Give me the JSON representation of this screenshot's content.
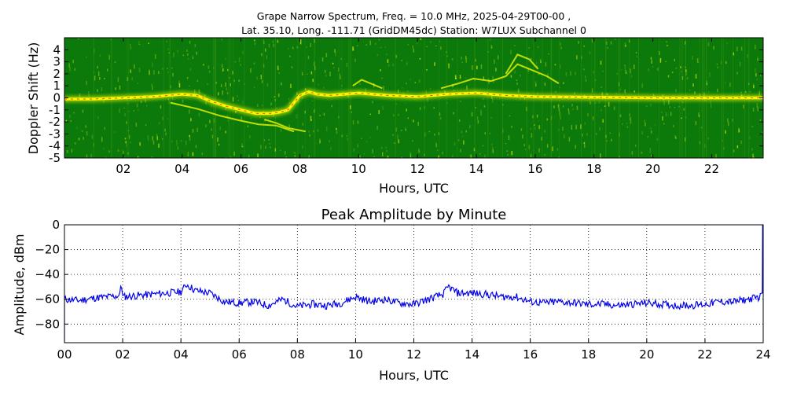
{
  "chart_data": [
    {
      "type": "heatmap",
      "title_line1": "Grape Narrow Spectrum, Freq. = 10.0 MHz, 2025-04-29T00-00 ,",
      "title_line2": "Lat.  35.10, Long. -111.71 (GridDM45dc) Station: W7LUX Subchannel 0",
      "xlabel": "Hours, UTC",
      "ylabel": "Doppler Shift (Hz)",
      "xlim": [
        0,
        23.75
      ],
      "ylim": [
        -5,
        5
      ],
      "x_ticks": [
        "02",
        "04",
        "06",
        "08",
        "10",
        "12",
        "14",
        "16",
        "18",
        "20",
        "22"
      ],
      "y_ticks": [
        "-5",
        "-4",
        "-3",
        "-2",
        "-1",
        "0",
        "1",
        "2",
        "3",
        "4"
      ],
      "colors": {
        "background": "#0b7a0b",
        "mid": "#8fc41a",
        "high": "#ffff00",
        "peak": "#ff2000"
      },
      "doppler_trace": {
        "hours": [
          0,
          1,
          2,
          3,
          4,
          4.5,
          5,
          5.5,
          6,
          6.5,
          7,
          7.3,
          7.6,
          8,
          8.3,
          8.6,
          9,
          9.5,
          10,
          10.5,
          11,
          12,
          13,
          14,
          15,
          16,
          18,
          20,
          22,
          23.75
        ],
        "hz": [
          -0.1,
          -0.1,
          0,
          0.1,
          0.3,
          0.2,
          -0.3,
          -0.7,
          -1.0,
          -1.3,
          -1.3,
          -1.2,
          -1.0,
          0.2,
          0.5,
          0.3,
          0.2,
          0.3,
          0.4,
          0.3,
          0.2,
          0.1,
          0.3,
          0.4,
          0.2,
          0.1,
          0.05,
          0,
          0,
          0
        ]
      },
      "secondary_traces": [
        {
          "hours": [
            3.6,
            4.5,
            5.3,
            6.0,
            6.6,
            7.2,
            7.8
          ],
          "hz": [
            -0.4,
            -0.9,
            -1.5,
            -1.9,
            -2.2,
            -2.3,
            -2.8
          ]
        },
        {
          "hours": [
            6.8,
            7.2,
            7.6,
            8.2
          ],
          "hz": [
            -1.8,
            -2.1,
            -2.5,
            -2.8
          ]
        },
        {
          "hours": [
            12.8,
            13.4,
            13.9,
            14.5,
            15.0,
            15.4,
            15.9,
            16.4,
            16.8
          ],
          "hz": [
            0.8,
            1.2,
            1.6,
            1.4,
            1.8,
            2.8,
            2.3,
            1.8,
            1.2
          ]
        },
        {
          "hours": [
            15.0,
            15.4,
            15.8,
            16.1
          ],
          "hz": [
            2.0,
            3.6,
            3.2,
            2.4
          ]
        },
        {
          "hours": [
            9.8,
            10.1,
            10.4,
            10.8
          ],
          "hz": [
            1.0,
            1.5,
            1.2,
            0.8
          ]
        }
      ]
    },
    {
      "type": "line",
      "title": "Peak Amplitude by Minute",
      "xlabel": "Hours, UTC",
      "ylabel": "Amplitude, dBm",
      "xlim": [
        0,
        24
      ],
      "ylim": [
        -95,
        0
      ],
      "x_ticks": [
        "00",
        "02",
        "04",
        "06",
        "08",
        "10",
        "12",
        "14",
        "16",
        "18",
        "20",
        "22",
        "24"
      ],
      "y_ticks": [
        "0",
        "−20",
        "−40",
        "−60",
        "−80"
      ],
      "y_tick_values": [
        0,
        -20,
        -40,
        -60,
        -80
      ],
      "grid": true,
      "series": [
        {
          "color": "#0000ee",
          "x": [
            0,
            0.5,
            1,
            1.5,
            1.9,
            1.95,
            2.0,
            2.5,
            3,
            3.5,
            4,
            4.2,
            4.5,
            5,
            5.5,
            6,
            6.5,
            7,
            7.5,
            8,
            8.5,
            9,
            9.5,
            10,
            10.5,
            11,
            11.5,
            12,
            12.5,
            13,
            13.2,
            13.5,
            14,
            14.5,
            15,
            15.5,
            16,
            16.5,
            17,
            17.5,
            18,
            18.5,
            19,
            19.5,
            20,
            20.5,
            21,
            21.5,
            22,
            22.5,
            23,
            23.5,
            23.9
          ],
          "y": [
            -60,
            -61,
            -59,
            -58,
            -57,
            -45,
            -58,
            -57,
            -56,
            -55,
            -54,
            -48,
            -53,
            -55,
            -62,
            -63,
            -62,
            -65,
            -60,
            -66,
            -64,
            -65,
            -63,
            -58,
            -62,
            -60,
            -63,
            -64,
            -60,
            -56,
            -50,
            -55,
            -55,
            -56,
            -58,
            -58,
            -62,
            -63,
            -62,
            -63,
            -64,
            -64,
            -65,
            -64,
            -63,
            -64,
            -65,
            -65,
            -64,
            -62,
            -62,
            -60,
            -58
          ]
        }
      ]
    }
  ]
}
